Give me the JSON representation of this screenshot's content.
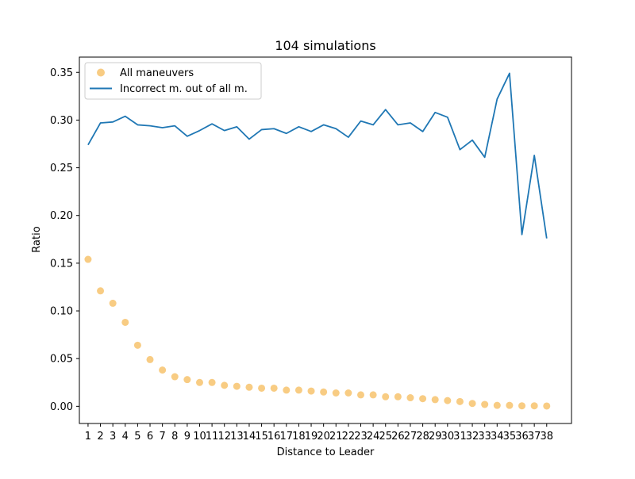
{
  "chart_data": {
    "type": "line",
    "title": "104 simulations",
    "xlabel": "Distance to Leader",
    "ylabel": "Ratio",
    "x": [
      1,
      2,
      3,
      4,
      5,
      6,
      7,
      8,
      9,
      10,
      11,
      12,
      13,
      14,
      15,
      16,
      17,
      18,
      19,
      20,
      21,
      22,
      23,
      24,
      25,
      26,
      27,
      28,
      29,
      30,
      31,
      32,
      33,
      34,
      35,
      36,
      37,
      38
    ],
    "x_tick_labels": [
      "1",
      "2",
      "3",
      "4",
      "5",
      "6",
      "7",
      "8",
      "9",
      "10",
      "11",
      "12",
      "13",
      "14",
      "15",
      "16",
      "17",
      "18",
      "19",
      "20",
      "21",
      "22",
      "23",
      "24",
      "25",
      "26",
      "27",
      "28",
      "29",
      "30",
      "31",
      "32",
      "33",
      "34",
      "35",
      "36",
      "37",
      "38"
    ],
    "xlim": [
      0.3,
      40.0
    ],
    "ylim": [
      -0.018,
      0.366
    ],
    "y_ticks": [
      0.0,
      0.05,
      0.1,
      0.15,
      0.2,
      0.25,
      0.3,
      0.35
    ],
    "y_tick_labels": [
      "0.00",
      "0.05",
      "0.10",
      "0.15",
      "0.20",
      "0.25",
      "0.30",
      "0.35"
    ],
    "grid": false,
    "legend_position": "top-left",
    "series": [
      {
        "name": "All maneuvers",
        "kind": "scatter",
        "color": "#f5b041",
        "values": [
          0.154,
          0.121,
          0.108,
          0.088,
          0.064,
          0.049,
          0.038,
          0.031,
          0.028,
          0.025,
          0.025,
          0.022,
          0.021,
          0.02,
          0.019,
          0.019,
          0.017,
          0.017,
          0.016,
          0.015,
          0.014,
          0.014,
          0.012,
          0.012,
          0.01,
          0.01,
          0.009,
          0.008,
          0.007,
          0.006,
          0.005,
          0.003,
          0.002,
          0.001,
          0.001,
          0.0005,
          0.0005,
          0.0003
        ]
      },
      {
        "name": "Incorrect m. out of all m.",
        "kind": "line",
        "color": "#1f77b4",
        "values": [
          0.274,
          0.297,
          0.298,
          0.304,
          0.295,
          0.294,
          0.292,
          0.294,
          0.283,
          0.289,
          0.296,
          0.289,
          0.293,
          0.28,
          0.29,
          0.291,
          0.286,
          0.293,
          0.288,
          0.295,
          0.291,
          0.282,
          0.299,
          0.295,
          0.311,
          0.295,
          0.297,
          0.288,
          0.308,
          0.303,
          0.269,
          0.279,
          0.261,
          0.322,
          0.349,
          0.18,
          0.263,
          0.176
        ]
      }
    ]
  }
}
